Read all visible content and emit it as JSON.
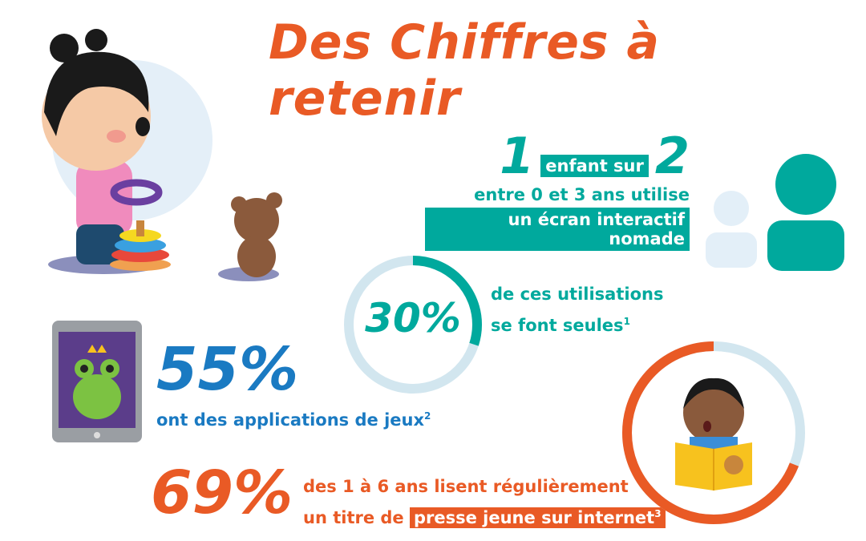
{
  "title": "Des Chiffres à retenir",
  "colors": {
    "teal": "#00a99d",
    "orange": "#e95a25",
    "blue": "#1a7ac2",
    "light_blue": "#d2e6ef"
  },
  "stat_one_in_two": {
    "number_one": "1",
    "highlight": "enfant sur",
    "number_two": "2",
    "line2": "entre 0 et 3 ans utilise",
    "line3": "un écran interactif nomade",
    "icon": "two-persons-icon"
  },
  "stat_30": {
    "value": "30%",
    "ring_fill_percent": 30,
    "line1": "de ces utilisations",
    "line2": "se font seules",
    "footnote": "1"
  },
  "stat_55": {
    "value": "55%",
    "line1": "ont des applications de jeux",
    "footnote": "2",
    "icon": "tablet-frog-icon"
  },
  "stat_69": {
    "value": "69%",
    "ring_fill_percent": 69,
    "line1": "des 1 à 6 ans lisent régulièrement",
    "line2_prefix": "un titre de",
    "line2_highlight": "presse jeune sur internet",
    "footnote": "3",
    "icon": "baby-reading-icon"
  },
  "illustration": "girl-with-toy-and-bear"
}
